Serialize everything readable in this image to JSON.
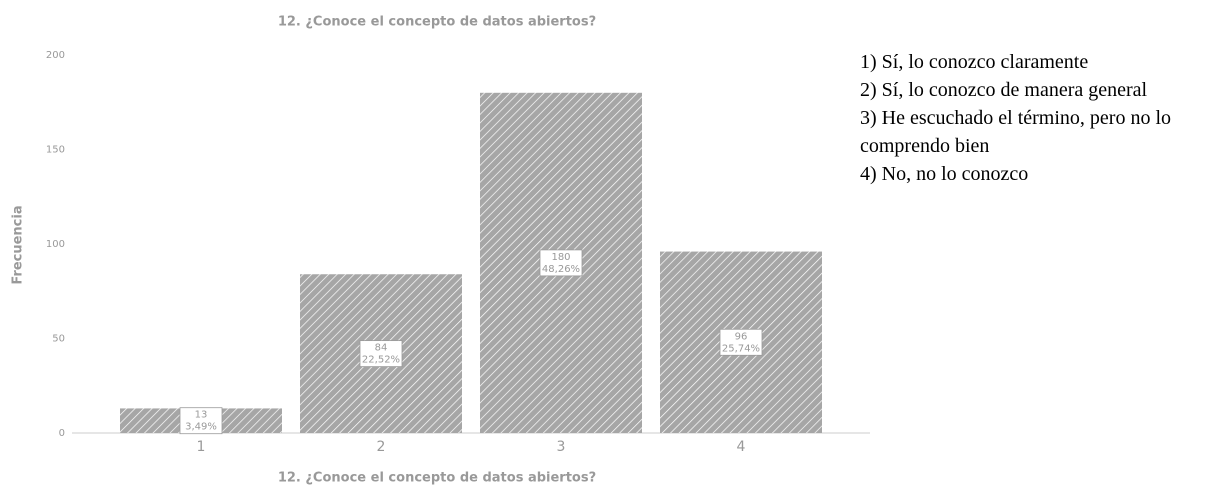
{
  "chart_data": {
    "type": "bar",
    "title": "12. ¿Conoce el concepto de datos abiertos?",
    "x_label": "12. ¿Conoce el concepto de datos abiertos?",
    "y_label": "Frecuencia",
    "categories": [
      "1",
      "2",
      "3",
      "4"
    ],
    "values": [
      13,
      84,
      180,
      96
    ],
    "percentages": [
      3.49,
      22.52,
      48.26,
      25.74
    ],
    "percentage_labels": [
      "3,49%",
      "22,52%",
      "48,26%",
      "25,74%"
    ],
    "color": "#a6a6a6",
    "ylim": [
      0,
      200
    ],
    "yticks": [
      0,
      50,
      100,
      150,
      200
    ],
    "grid": false,
    "notes": [
      "1) Sí, lo conozco claramente",
      "2) Sí, lo conozco de manera general",
      "3) He escuchado el término, pero no lo comprendo bien",
      "4) No, no lo conozco"
    ]
  }
}
